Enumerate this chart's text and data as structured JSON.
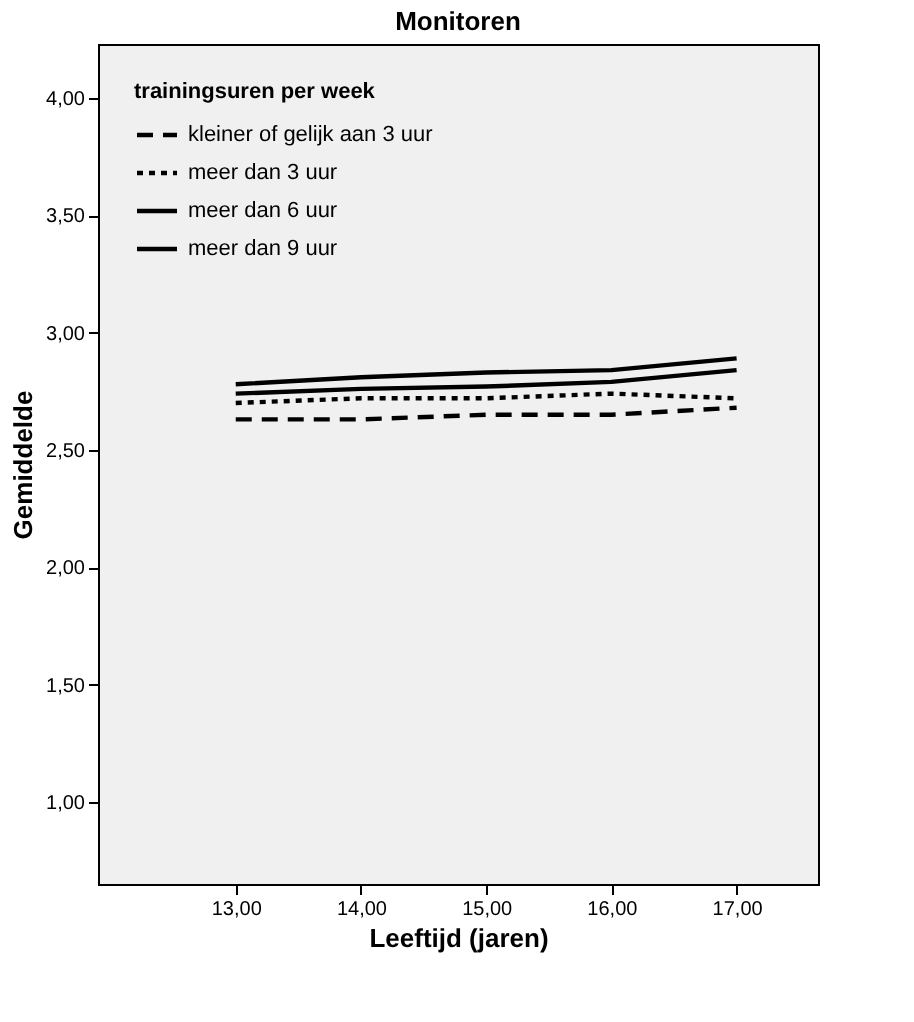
{
  "chart_data": {
    "type": "line",
    "title": "Monitoren",
    "xlabel": "Leeftijd (jaren)",
    "ylabel": "Gemiddelde",
    "legend_title": "trainingsuren per week",
    "x": [
      13,
      14,
      15,
      16,
      17
    ],
    "series": [
      {
        "name": "kleiner of gelijk aan 3 uur",
        "color": "#000000",
        "line_style": "dashed",
        "values": [
          2.63,
          2.63,
          2.65,
          2.65,
          2.68
        ]
      },
      {
        "name": "meer dan 3 uur",
        "color": "#000000",
        "line_style": "dotted",
        "values": [
          2.7,
          2.72,
          2.72,
          2.74,
          2.72
        ]
      },
      {
        "name": "meer dan 6 uur",
        "color": "#000000",
        "line_style": "solid",
        "values": [
          2.74,
          2.76,
          2.77,
          2.79,
          2.84
        ]
      },
      {
        "name": "meer dan 9 uur",
        "color": "#000000",
        "line_style": "solid",
        "values": [
          2.78,
          2.81,
          2.83,
          2.84,
          2.89
        ]
      }
    ],
    "xlim": [
      11.9,
      17.65
    ],
    "ylim": [
      0.65,
      4.23
    ],
    "xticks": [
      {
        "value": 13,
        "label": "13,00"
      },
      {
        "value": 14,
        "label": "14,00"
      },
      {
        "value": 15,
        "label": "15,00"
      },
      {
        "value": 16,
        "label": "16,00"
      },
      {
        "value": 17,
        "label": "17,00"
      }
    ],
    "yticks": [
      {
        "value": 1,
        "label": "1,00"
      },
      {
        "value": 1.5,
        "label": "1,50"
      },
      {
        "value": 2,
        "label": "2,00"
      },
      {
        "value": 2.5,
        "label": "2,50"
      },
      {
        "value": 3,
        "label": "3,00"
      },
      {
        "value": 3.5,
        "label": "3,50"
      },
      {
        "value": 4,
        "label": "4,00"
      }
    ],
    "grid": false,
    "legend": "top left",
    "marker": "none"
  }
}
